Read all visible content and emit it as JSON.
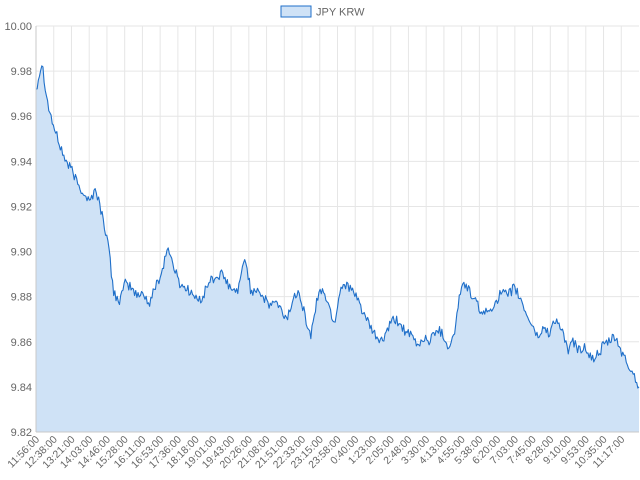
{
  "chart_data": {
    "type": "area",
    "legend": {
      "position": "top",
      "entries": [
        "JPY KRW"
      ]
    },
    "colors": {
      "line": "#1f6fc9",
      "fill": "#cfe2f6",
      "grid": "#e6e6e6",
      "axis": "#c8c8c8",
      "tick_text": "#666666"
    },
    "grid": true,
    "ylim": [
      9.82,
      10.0
    ],
    "y_ticks": [
      "9.82",
      "9.84",
      "9.86",
      "9.88",
      "9.90",
      "9.92",
      "9.94",
      "9.96",
      "9.98",
      "10.00"
    ],
    "x_ticks": [
      "11:56:00",
      "12:38:00",
      "13:21:00",
      "14:03:00",
      "14:46:00",
      "15:28:00",
      "16:11:00",
      "16:53:00",
      "17:36:00",
      "18:18:00",
      "19:01:00",
      "19:43:00",
      "20:26:00",
      "21:08:00",
      "21:51:00",
      "22:33:00",
      "23:15:00",
      "23:58:00",
      "0:40:00",
      "1:23:00",
      "2:05:00",
      "2:48:00",
      "3:30:00",
      "4:13:00",
      "4:55:00",
      "5:38:00",
      "6:20:00",
      "7:03:00",
      "7:45:00",
      "8:28:00",
      "9:10:00",
      "9:53:00",
      "10:35:00",
      "11:17:00"
    ],
    "series": [
      {
        "name": "JPY KRW",
        "values": [
          9.972,
          9.984,
          9.965,
          9.955,
          9.947,
          9.94,
          9.936,
          9.93,
          9.926,
          9.922,
          9.928,
          9.917,
          9.905,
          9.882,
          9.878,
          9.886,
          9.884,
          9.88,
          9.882,
          9.876,
          9.885,
          9.89,
          9.902,
          9.894,
          9.886,
          9.884,
          9.882,
          9.878,
          9.88,
          9.887,
          9.888,
          9.89,
          9.886,
          9.882,
          9.884,
          9.898,
          9.882,
          9.884,
          9.88,
          9.876,
          9.878,
          9.874,
          9.87,
          9.878,
          9.884,
          9.872,
          9.862,
          9.878,
          9.884,
          9.876,
          9.868,
          9.884,
          9.886,
          9.882,
          9.878,
          9.872,
          9.866,
          9.862,
          9.86,
          9.866,
          9.87,
          9.868,
          9.864,
          9.862,
          9.858,
          9.862,
          9.86,
          9.866,
          9.864,
          9.858,
          9.862,
          9.882,
          9.886,
          9.88,
          9.876,
          9.872,
          9.874,
          9.878,
          9.882,
          9.88,
          9.884,
          9.88,
          9.873,
          9.868,
          9.862,
          9.866,
          9.864,
          9.87,
          9.866,
          9.856,
          9.86,
          9.856,
          9.858,
          9.852,
          9.854,
          9.858,
          9.86,
          9.862,
          9.856,
          9.85,
          9.846,
          9.84
        ]
      }
    ]
  }
}
